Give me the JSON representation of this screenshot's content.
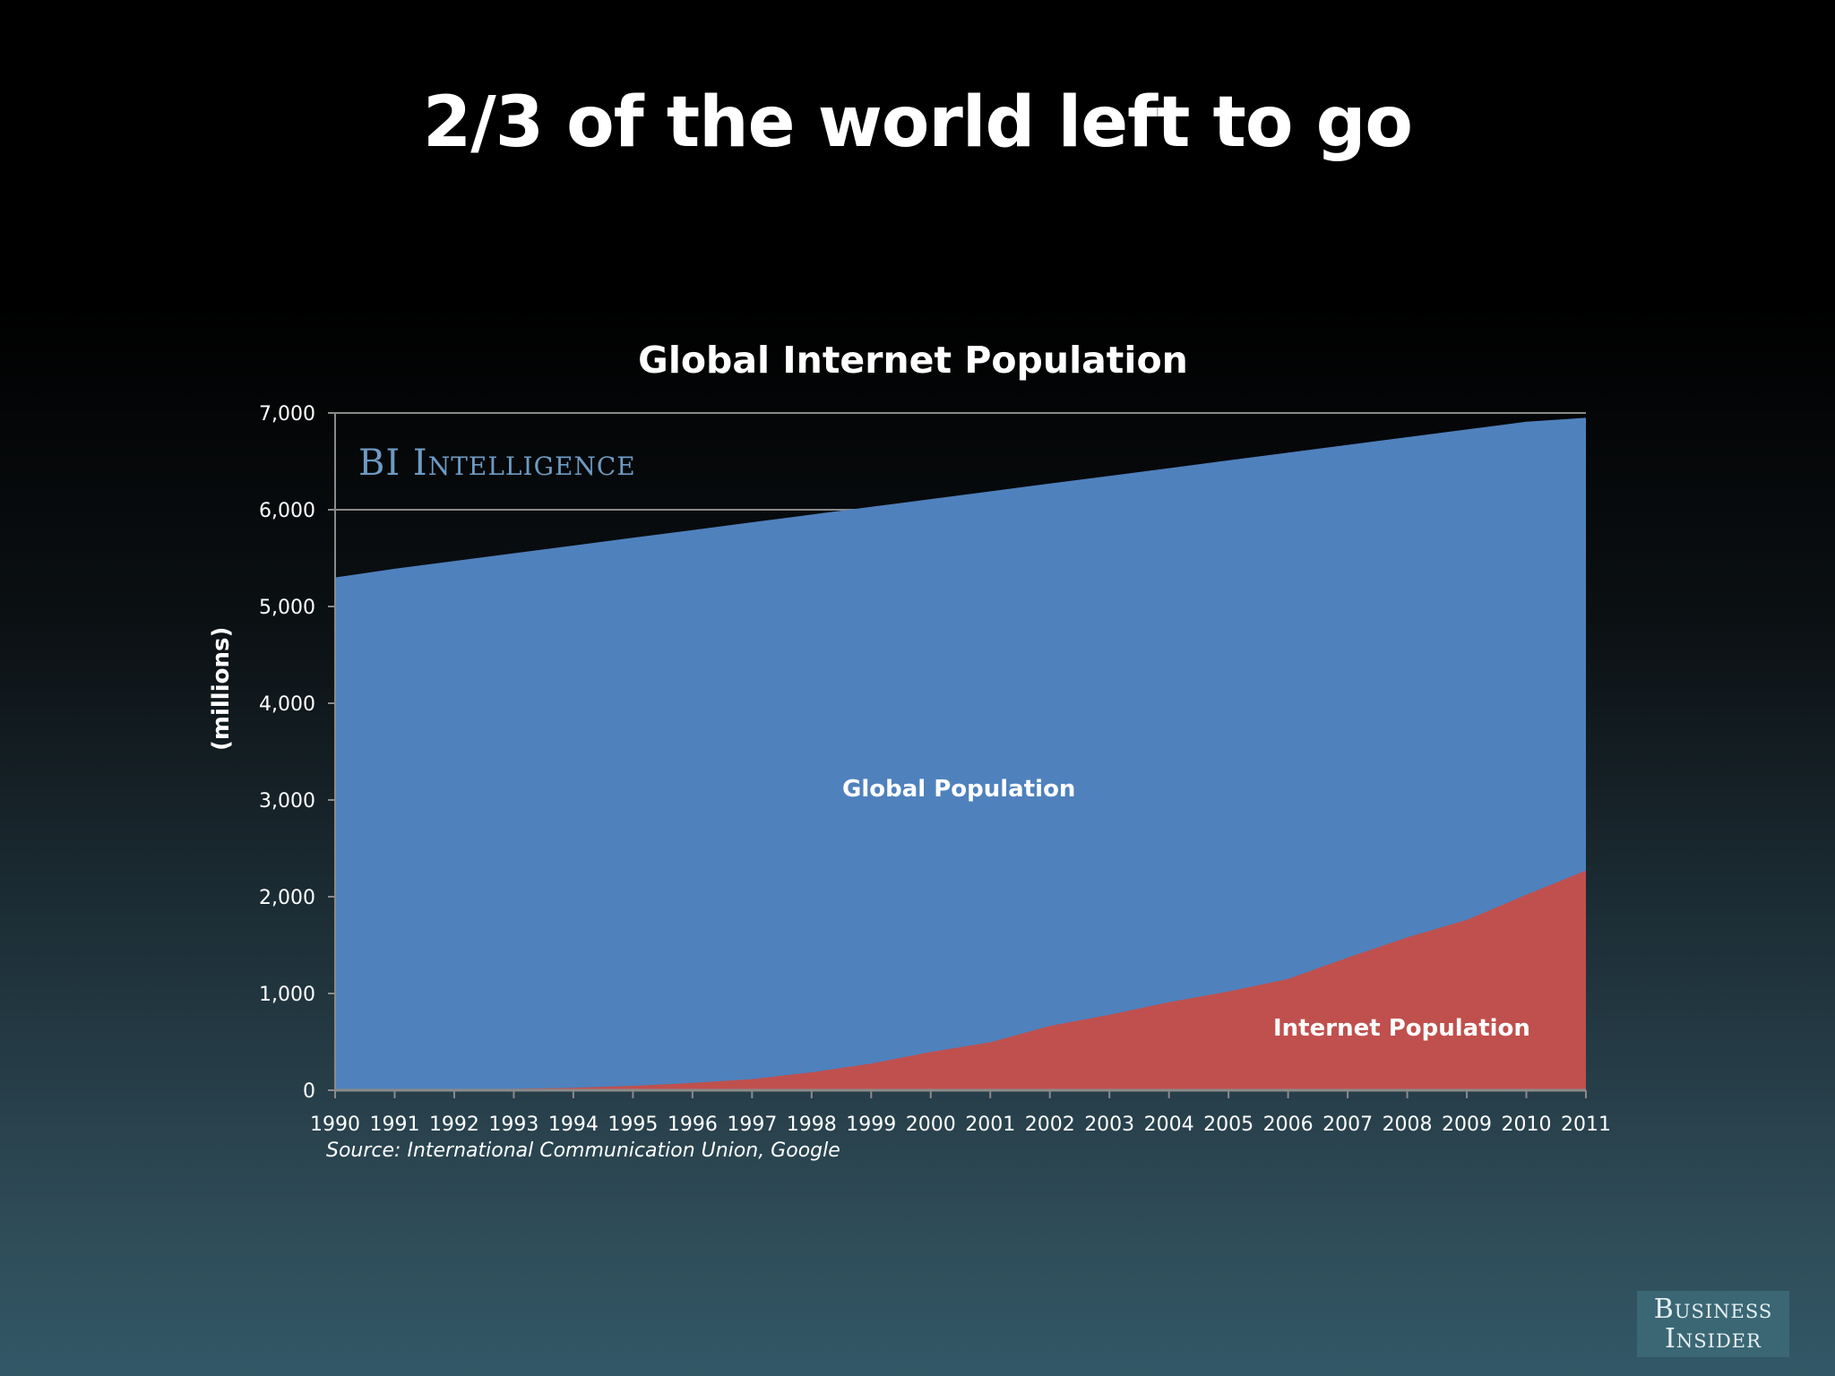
{
  "slide": {
    "title": "2/3 of the world left to go",
    "watermark": "BI Intelligence",
    "logo_line1": "Business",
    "logo_line2": "Insider"
  },
  "chart_data": {
    "type": "area",
    "title": "Global Internet Population",
    "xlabel": "",
    "ylabel": "(millions)",
    "ylim": [
      0,
      7000
    ],
    "yticks": [
      "0",
      "1,000",
      "2,000",
      "3,000",
      "4,000",
      "5,000",
      "6,000",
      "7,000"
    ],
    "grid": "horizontal at 6,000 and 7,000 (visible above area)",
    "x": [
      "1990",
      "1991",
      "1992",
      "1993",
      "1994",
      "1995",
      "1996",
      "1997",
      "1998",
      "1999",
      "2000",
      "2001",
      "2002",
      "2003",
      "2004",
      "2005",
      "2006",
      "2007",
      "2008",
      "2009",
      "2010",
      "2011"
    ],
    "series": [
      {
        "name": "Global Population",
        "color": "#4f81bd",
        "values": [
          5300,
          5390,
          5470,
          5550,
          5630,
          5710,
          5790,
          5870,
          5950,
          6030,
          6110,
          6190,
          6270,
          6350,
          6430,
          6510,
          6590,
          6670,
          6750,
          6830,
          6910,
          6950
        ]
      },
      {
        "name": "Internet Population",
        "color": "#c0504d",
        "values": [
          3,
          5,
          10,
          15,
          25,
          45,
          75,
          115,
          185,
          275,
          395,
          495,
          665,
          780,
          910,
          1020,
          1150,
          1370,
          1580,
          1760,
          2020,
          2270
        ]
      }
    ],
    "annotations": [
      "Global Population",
      "Internet Population"
    ],
    "source": "Source: International Communication Union, Google"
  }
}
